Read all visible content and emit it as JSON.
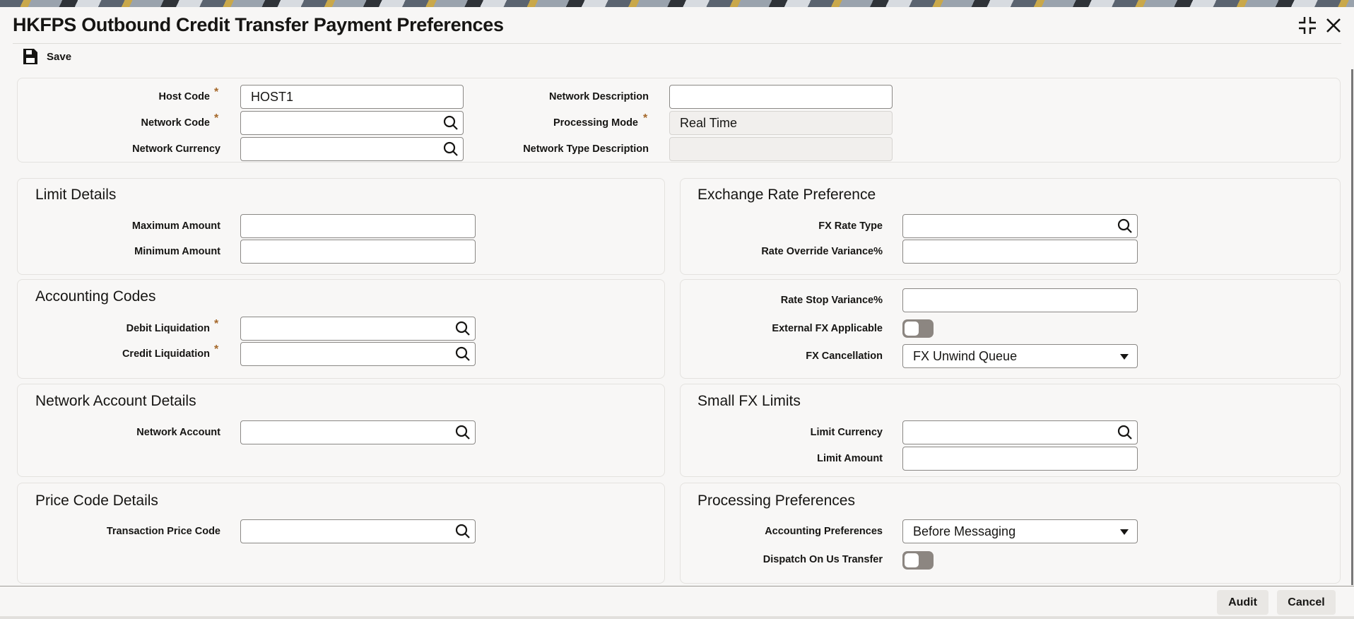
{
  "title": "HKFPS Outbound Credit Transfer Payment Preferences",
  "toolbar": {
    "save_label": "Save"
  },
  "header": {
    "host_code": {
      "label": "Host Code",
      "value": "HOST1",
      "required": true
    },
    "network_code": {
      "label": "Network Code",
      "value": "",
      "required": true
    },
    "network_currency": {
      "label": "Network Currency",
      "value": ""
    },
    "network_description": {
      "label": "Network Description",
      "value": ""
    },
    "processing_mode": {
      "label": "Processing Mode",
      "value": "Real Time",
      "required": true
    },
    "network_type_description": {
      "label": "Network Type Description",
      "value": ""
    }
  },
  "limit_details": {
    "title": "Limit Details",
    "maximum_amount": {
      "label": "Maximum Amount",
      "value": ""
    },
    "minimum_amount": {
      "label": "Minimum Amount",
      "value": ""
    }
  },
  "accounting_codes": {
    "title": "Accounting Codes",
    "debit_liquidation": {
      "label": "Debit Liquidation",
      "value": ""
    },
    "credit_liquidation": {
      "label": "Credit Liquidation",
      "value": ""
    }
  },
  "network_account_details": {
    "title": "Network Account Details",
    "network_account": {
      "label": "Network Account",
      "value": ""
    }
  },
  "price_code_details": {
    "title": "Price Code Details",
    "transaction_price_code": {
      "label": "Transaction Price Code",
      "value": ""
    }
  },
  "exchange_rate_preference": {
    "title": "Exchange Rate Preference",
    "fx_rate_type": {
      "label": "FX Rate Type",
      "value": ""
    },
    "rate_override_variance": {
      "label": "Rate Override Variance%",
      "value": ""
    },
    "rate_stop_variance": {
      "label": "Rate Stop Variance%",
      "value": ""
    },
    "external_fx_applicable": {
      "label": "External FX Applicable",
      "on": false
    },
    "fx_cancellation": {
      "label": "FX Cancellation",
      "value": "FX Unwind Queue"
    }
  },
  "small_fx_limits": {
    "title": "Small FX Limits",
    "limit_currency": {
      "label": "Limit Currency",
      "value": ""
    },
    "limit_amount": {
      "label": "Limit Amount",
      "value": ""
    }
  },
  "processing_preferences": {
    "title": "Processing Preferences",
    "accounting_preferences": {
      "label": "Accounting Preferences",
      "value": "Before Messaging"
    },
    "dispatch_on_us_transfer": {
      "label": "Dispatch On Us Transfer",
      "on": false
    }
  },
  "footer": {
    "audit_label": "Audit",
    "cancel_label": "Cancel"
  },
  "colors": {
    "required": "#a5682a",
    "toggle_off": "#8c8681"
  }
}
